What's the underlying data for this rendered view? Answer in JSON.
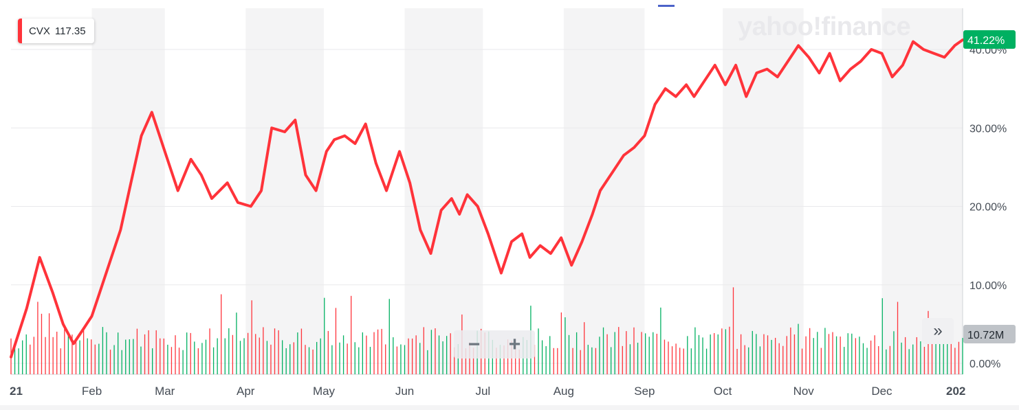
{
  "legend": {
    "symbol": "CVX",
    "value": "117.35",
    "color": "#ff333a"
  },
  "logo_text": "yahoo!finance",
  "current_badge": {
    "text": "41.22%",
    "color": "#00b061"
  },
  "volume_badge": {
    "text": "10.72M",
    "color": "#bfc3c8"
  },
  "zoom": {
    "minus": "−",
    "plus": "+"
  },
  "expand_icon": "»",
  "colors": {
    "line": "#ff333a",
    "volume_up": "#00b061",
    "volume_down": "#ff333a",
    "band": "#f4f4f5",
    "grid": "#e9e9ec",
    "axis_text": "#454c55"
  },
  "chart_data": {
    "type": "line",
    "title": "",
    "xlabel": "",
    "ylabel": "",
    "ylim": [
      -1,
      42
    ],
    "y_ticks": [
      "0.00%",
      "10.00%",
      "20.00%",
      "30.00%",
      "40.00%"
    ],
    "y_tick_values": [
      0,
      10,
      20,
      30,
      40
    ],
    "x_ticks": [
      "21",
      "Feb",
      "Mar",
      "Apr",
      "May",
      "Jun",
      "Jul",
      "Aug",
      "Sep",
      "Oct",
      "Nov",
      "Dec",
      "202"
    ],
    "x_tick_days": [
      0,
      31,
      59,
      90,
      120,
      151,
      181,
      212,
      243,
      273,
      304,
      334,
      365
    ],
    "grid": true,
    "series": [
      {
        "name": "CVX",
        "x": [
          0,
          6,
          11,
          16,
          20,
          24,
          28,
          31,
          34,
          38,
          42,
          46,
          50,
          54,
          59,
          64,
          69,
          73,
          77,
          83,
          87,
          92,
          96,
          100,
          105,
          109,
          113,
          117,
          121,
          124,
          128,
          132,
          136,
          140,
          144,
          149,
          153,
          157,
          161,
          165,
          169,
          172,
          175,
          179,
          183,
          188,
          192,
          196,
          199,
          203,
          207,
          211,
          215,
          219,
          223,
          226,
          230,
          235,
          239,
          243,
          247,
          251,
          255,
          259,
          262,
          266,
          270,
          274,
          278,
          282,
          286,
          290,
          294,
          298,
          302,
          306,
          310,
          314,
          318,
          322,
          326,
          330,
          334,
          338,
          342,
          346,
          350,
          354,
          358,
          362,
          365
        ],
        "values": [
          0.8,
          7.0,
          13.5,
          9.0,
          5.0,
          2.5,
          4.5,
          6.0,
          9.0,
          13.0,
          17.0,
          23.0,
          29.0,
          32.0,
          27.0,
          22.0,
          26.0,
          24.0,
          21.0,
          23.0,
          20.5,
          20.0,
          22.0,
          30.0,
          29.5,
          31.0,
          24.0,
          22.0,
          27.0,
          28.5,
          29.0,
          28.0,
          30.5,
          25.5,
          22.0,
          27.0,
          23.0,
          17.0,
          14.0,
          19.5,
          21.0,
          19.0,
          21.5,
          20.0,
          16.5,
          11.5,
          15.5,
          16.5,
          13.5,
          15.0,
          14.0,
          16.0,
          12.5,
          15.5,
          19.0,
          22.0,
          24.0,
          26.5,
          27.5,
          29.0,
          33.0,
          35.0,
          34.0,
          35.5,
          34.0,
          36.0,
          38.0,
          35.5,
          38.0,
          34.0,
          37.0,
          37.5,
          36.5,
          38.5,
          40.5,
          39.0,
          37.0,
          39.5,
          36.0,
          37.5,
          38.5,
          40.0,
          39.5,
          36.5,
          38.0,
          41.0,
          40.0,
          39.5,
          39.0,
          40.5,
          41.22
        ]
      }
    ]
  }
}
